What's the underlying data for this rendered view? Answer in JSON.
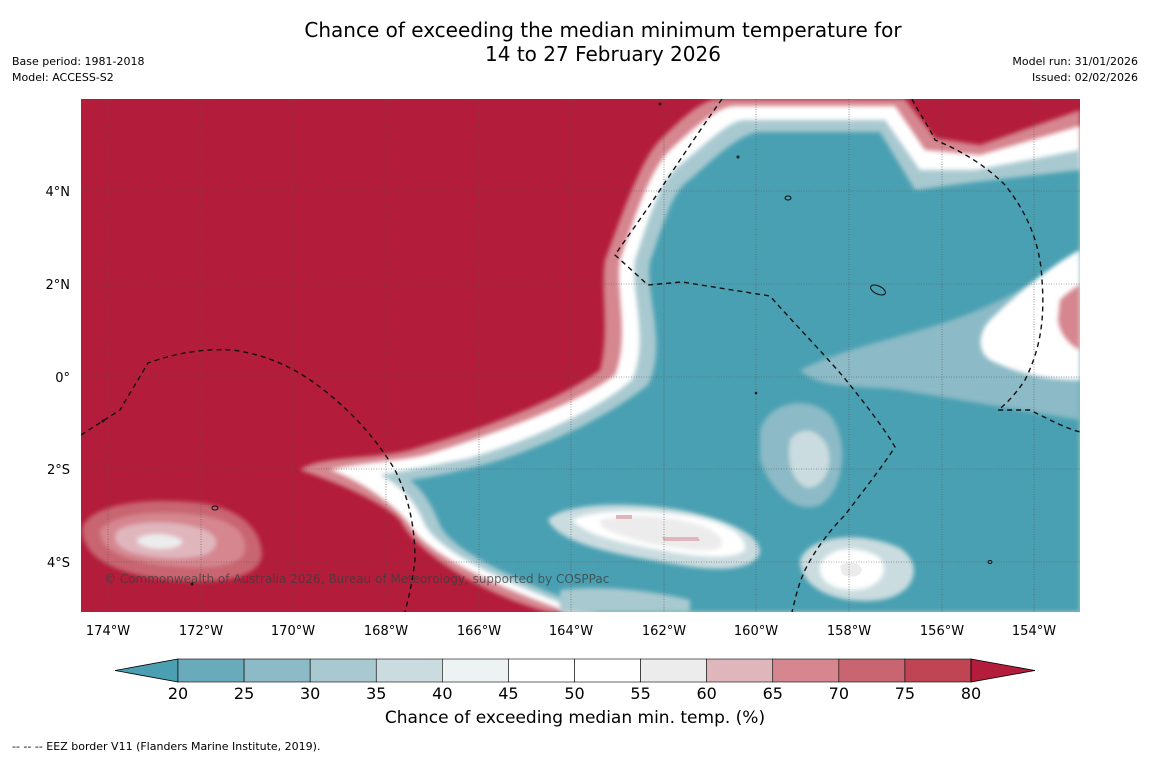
{
  "title_line1": "Chance of exceeding the median minimum temperature for",
  "title_line2": "14 to 27 February 2026",
  "meta_left": [
    "Base period: 1981-2018",
    "Model: ACCESS-S2"
  ],
  "meta_right": [
    "Model run: 31/01/2026",
    "Issued: 02/02/2026"
  ],
  "copyright": "© Commonwealth of Australia 2026, Bureau of Meteorology, supported by COSPPac",
  "lon_labels": [
    "174°W",
    "172°W",
    "170°W",
    "168°W",
    "166°W",
    "164°W",
    "162°W",
    "160°W",
    "158°W",
    "156°W",
    "154°W"
  ],
  "lat_labels": [
    "4°N",
    "2°N",
    "0°",
    "2°S",
    "4°S"
  ],
  "colorbar": {
    "ticks": [
      "20",
      "25",
      "30",
      "35",
      "40",
      "45",
      "50",
      "55",
      "60",
      "65",
      "70",
      "75",
      "80"
    ],
    "colors": [
      "#4aa0b2",
      "#6aabbb",
      "#8cbac6",
      "#a9c9d0",
      "#cadcdf",
      "#edf3f3",
      "#ffffff",
      "#ffffff",
      "#ececec",
      "#e0b6bd",
      "#d5868f",
      "#c86570",
      "#bf4555",
      "#b31c3a"
    ],
    "label": "Chance of exceeding median min. temp. (%)"
  },
  "footnote": "--  --  -- EEZ border V11 (Flanders Marine Institute, 2019)."
}
